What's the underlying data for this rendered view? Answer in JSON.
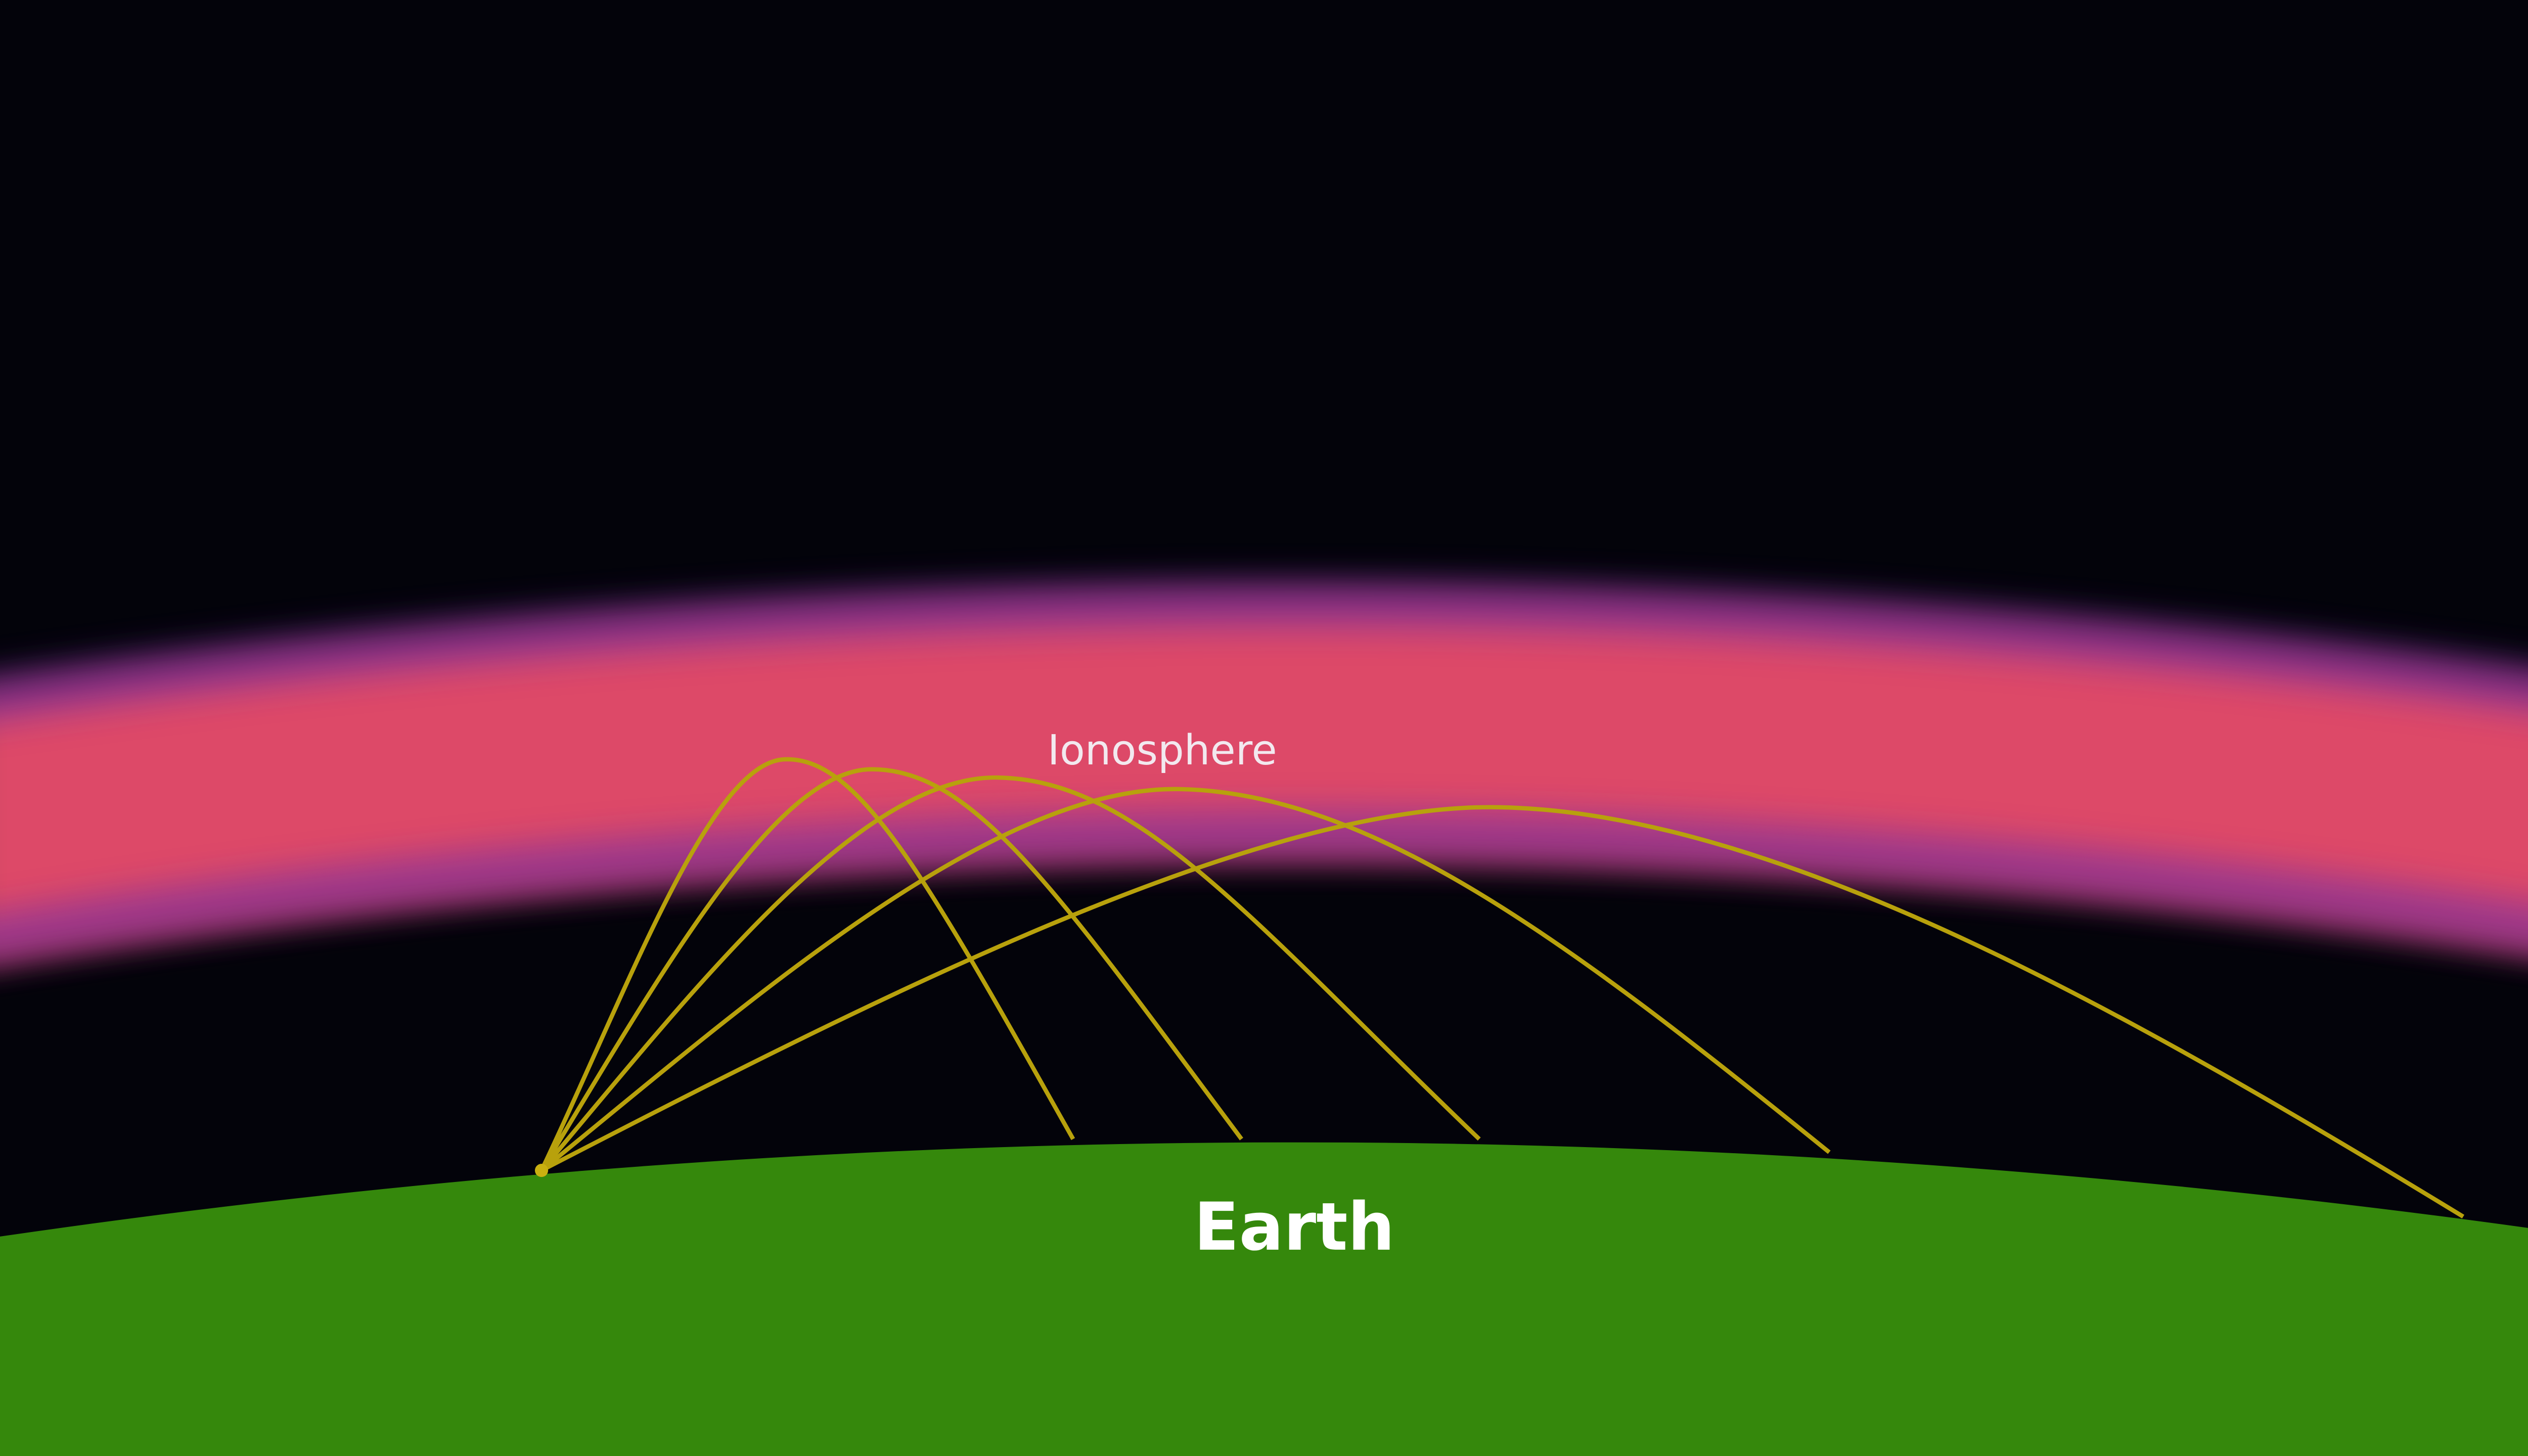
{
  "labels": {
    "ionosphere": "Ionosphere",
    "earth": "Earth"
  },
  "colors": {
    "space": "#03030a",
    "earth": "#35880c",
    "ray": "#b8a10c",
    "ionosphere_core": "#dd4a68",
    "ionosphere_edge": "#6a2aa8",
    "label_ionosphere": "#f2e9ef",
    "label_earth": "#ffffff"
  },
  "rays": {
    "count": 5
  }
}
